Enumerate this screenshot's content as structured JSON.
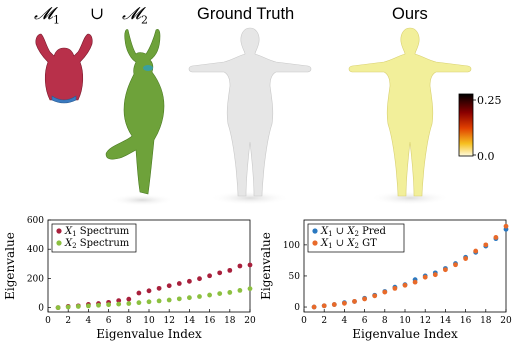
{
  "figure": {
    "headers": {
      "m1": {
        "sym": "𝓜",
        "sub": "1"
      },
      "union": "∪",
      "m2": {
        "sym": "𝓜",
        "sub": "2"
      },
      "ground_truth": "Ground Truth",
      "ours": "Ours"
    },
    "colorbar": {
      "max_label": "0.25",
      "min_label": "0.0"
    },
    "colors": {
      "m1_fill": "#b8304a",
      "m2_fill": "#6ea23a",
      "gt_fill": "#e6e6e6",
      "ours_fill": "#f2ef9a",
      "series_red": "#a8203c",
      "series_green": "#8cc040",
      "series_blue": "#2a78c0",
      "series_orange": "#e86a2a"
    }
  },
  "chart_data": [
    {
      "type": "scatter",
      "xlabel": "Eigenvalue Index",
      "ylabel": "Eigenvalue",
      "xlim": [
        0,
        20
      ],
      "ylim": [
        -30,
        600
      ],
      "xticks": [
        "0",
        "2",
        "4",
        "6",
        "8",
        "10",
        "12",
        "14",
        "16",
        "18",
        "20"
      ],
      "yticks": [
        "0",
        "200",
        "400",
        "600"
      ],
      "legend_position": "top-left",
      "series": [
        {
          "name": "X₁ Spectrum",
          "legend_var": "X",
          "legend_sub": "1",
          "legend_text": " Spectrum",
          "color": "#a8203c",
          "x": [
            1,
            2,
            3,
            4,
            5,
            6,
            7,
            8,
            9,
            10,
            11,
            12,
            13,
            14,
            15,
            16,
            17,
            18,
            19,
            20
          ],
          "values": [
            0,
            8,
            12,
            22,
            28,
            36,
            48,
            58,
            100,
            115,
            132,
            150,
            165,
            180,
            198,
            218,
            238,
            255,
            285,
            292
          ]
        },
        {
          "name": "X₂ Spectrum",
          "legend_var": "X",
          "legend_sub": "2",
          "legend_text": " Spectrum",
          "color": "#8cc040",
          "x": [
            1,
            2,
            3,
            4,
            5,
            6,
            7,
            8,
            9,
            10,
            11,
            12,
            13,
            14,
            15,
            16,
            17,
            18,
            19,
            20
          ],
          "values": [
            0,
            4,
            8,
            12,
            16,
            20,
            24,
            28,
            34,
            40,
            46,
            52,
            60,
            68,
            76,
            86,
            96,
            104,
            118,
            130
          ]
        }
      ]
    },
    {
      "type": "scatter",
      "xlabel": "Eigenvalue Index",
      "ylabel": "Eigenvalue",
      "xlim": [
        0,
        20
      ],
      "ylim": [
        -8,
        140
      ],
      "xticks": [
        "0",
        "2",
        "4",
        "6",
        "8",
        "10",
        "12",
        "14",
        "16",
        "18",
        "20"
      ],
      "yticks": [
        "0",
        "50",
        "100"
      ],
      "legend_position": "top-left",
      "series": [
        {
          "name": "X₁ ∪ X₂ Pred",
          "legend_var": "X",
          "legend_sub": "1",
          "legend_text": " ∪ X",
          "legend_sub2": "2",
          "legend_text2": " Pred",
          "color": "#2a78c0",
          "x": [
            1,
            2,
            3,
            4,
            5,
            6,
            7,
            8,
            9,
            10,
            11,
            12,
            13,
            14,
            15,
            16,
            17,
            18,
            19,
            20
          ],
          "values": [
            0,
            2,
            4,
            7,
            9,
            14,
            19,
            25,
            32,
            36,
            44,
            50,
            55,
            62,
            70,
            80,
            88,
            98,
            110,
            125
          ]
        },
        {
          "name": "X₁ ∪ X₂ GT",
          "legend_var": "X",
          "legend_sub": "1",
          "legend_text": " ∪ X",
          "legend_sub2": "2",
          "legend_text2": " GT",
          "color": "#e86a2a",
          "x": [
            1,
            2,
            3,
            4,
            5,
            6,
            7,
            8,
            9,
            10,
            11,
            12,
            13,
            14,
            15,
            16,
            17,
            18,
            19,
            20
          ],
          "values": [
            0,
            2,
            4,
            6,
            9,
            13,
            18,
            24,
            30,
            35,
            40,
            48,
            52,
            60,
            68,
            78,
            90,
            100,
            112,
            130
          ]
        }
      ]
    }
  ]
}
